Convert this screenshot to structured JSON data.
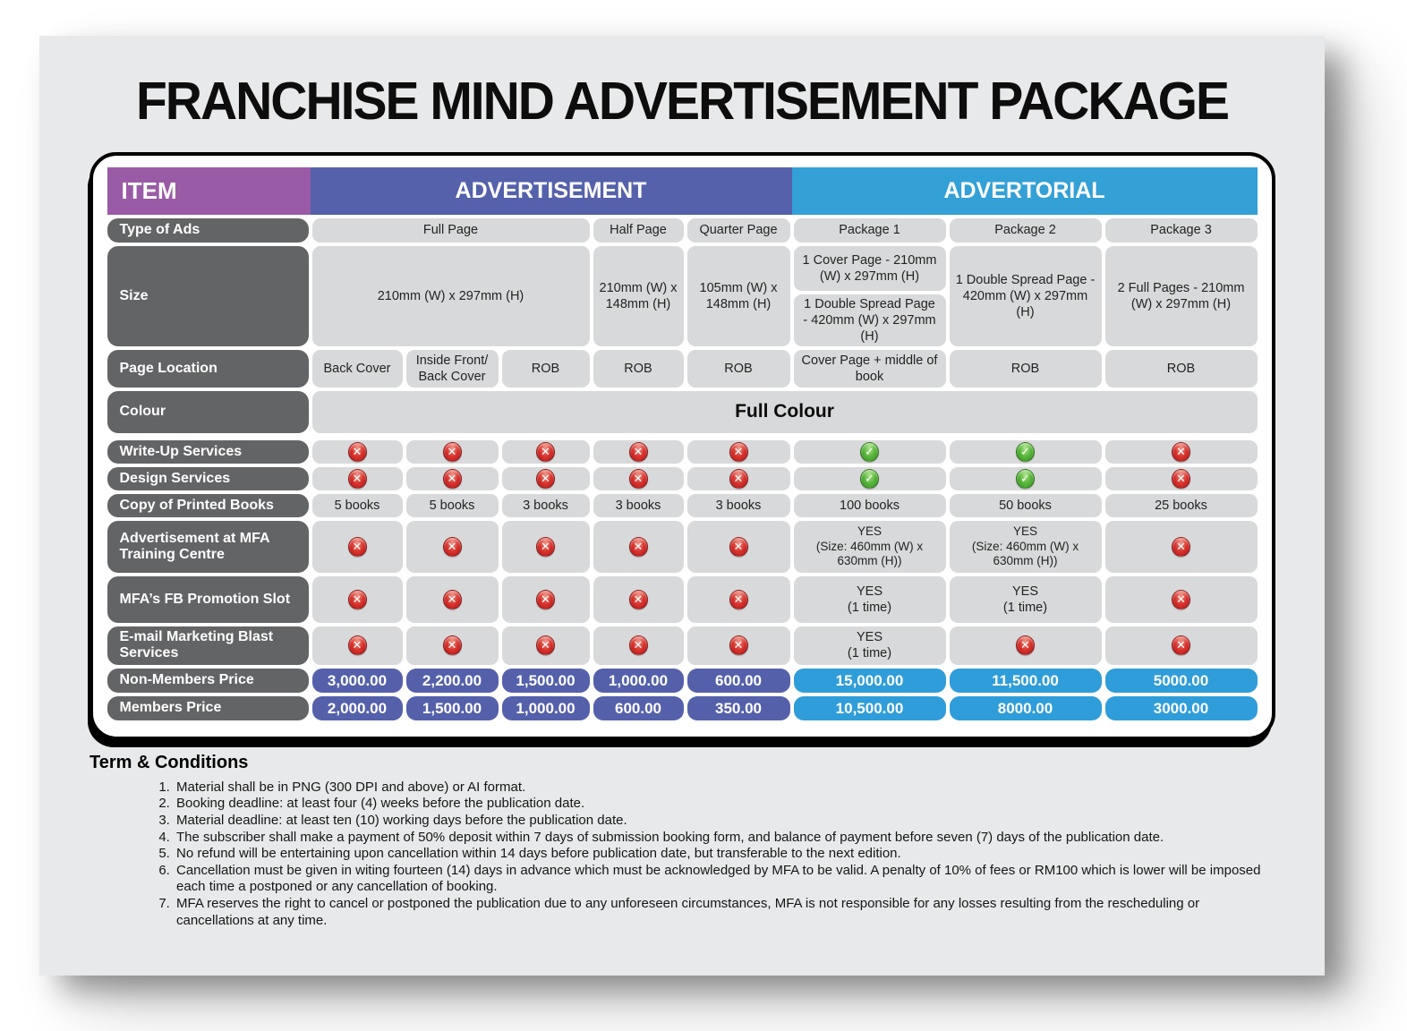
{
  "title": "FRANCHISE MIND ADVERTISEMENT PACKAGE",
  "header": {
    "item": "ITEM",
    "advertisement": "ADVERTISEMENT",
    "advertorial": "ADVERTORIAL"
  },
  "rows": {
    "type_of_ads": {
      "label": "Type of Ads",
      "full_page": "Full Page",
      "half_page": "Half Page",
      "quarter_page": "Quarter Page",
      "package1": "Package 1",
      "package2": "Package 2",
      "package3": "Package 3"
    },
    "size": {
      "label": "Size",
      "full_page": "210mm (W) x 297mm (H)",
      "half_page": "210mm (W) x 148mm (H)",
      "quarter_page": "105mm (W) x 148mm (H)",
      "package1_cover": "1 Cover Page - 210mm (W) x 297mm (H)",
      "package1_spread": "1 Double Spread Page - 420mm (W) x 297mm (H)",
      "package2": "1 Double Spread Page - 420mm (W) x 297mm (H)",
      "package3": "2 Full Pages - 210mm (W) x 297mm (H)"
    },
    "page_location": {
      "label": "Page Location",
      "cells": [
        "Back Cover",
        "Inside Front/ Back Cover",
        "ROB",
        "ROB",
        "ROB",
        "Cover Page + middle of book",
        "ROB",
        "ROB"
      ]
    },
    "colour": {
      "label": "Colour",
      "value": "Full Colour"
    },
    "write_up_services": {
      "label": "Write-Up Services",
      "values": [
        "no",
        "no",
        "no",
        "no",
        "no",
        "yes",
        "yes",
        "no"
      ]
    },
    "design_services": {
      "label": "Design Services",
      "values": [
        "no",
        "no",
        "no",
        "no",
        "no",
        "yes",
        "yes",
        "no"
      ]
    },
    "printed_books": {
      "label": "Copy of Printed Books",
      "values": [
        "5 books",
        "5 books",
        "3 books",
        "3 books",
        "3 books",
        "100 books",
        "50 books",
        "25 books"
      ]
    },
    "mfa_training": {
      "label": "Advertisement at MFA Training Centre",
      "values": [
        "no",
        "no",
        "no",
        "no",
        "no",
        "YES\n(Size: 460mm (W) x 630mm (H))",
        "YES\n(Size: 460mm (W) x 630mm (H))",
        "no"
      ]
    },
    "fb_promotion": {
      "label": "MFA’s FB Promotion Slot",
      "values": [
        "no",
        "no",
        "no",
        "no",
        "no",
        "YES\n(1 time)",
        "YES\n(1 time)",
        "no"
      ]
    },
    "email_blast": {
      "label": "E-mail Marketing Blast Services",
      "values": [
        "no",
        "no",
        "no",
        "no",
        "no",
        "YES\n(1 time)",
        "no",
        "no"
      ]
    },
    "non_members_price": {
      "label": "Non-Members Price",
      "values": [
        "3,000.00",
        "2,200.00",
        "1,500.00",
        "1,000.00",
        "600.00",
        "15,000.00",
        "11,500.00",
        "5000.00"
      ]
    },
    "members_price": {
      "label": "Members Price",
      "values": [
        "2,000.00",
        "1,500.00",
        "1,000.00",
        "600.00",
        "350.00",
        "10,500.00",
        "8000.00",
        "3000.00"
      ]
    }
  },
  "terms": {
    "heading": "Term & Conditions",
    "items": [
      "Material shall be in PNG (300 DPI and above) or AI format.",
      "Booking deadline: at least four (4) weeks before the publication date.",
      "Material deadline: at least ten (10) working days before the publication date.",
      "The subscriber shall make a payment of 50% deposit within 7 days of submission booking form, and balance of payment before seven (7) days of the publication date.",
      "No refund will be entertaining upon cancellation within 14 days before publication date, but transferable to the next edition.",
      "Cancellation must be given in witing fourteen (14) days in advance which must be acknowledged by MFA to be valid. A penalty of 10% of fees or RM100 which is lower will be imposed each time a postponed or any cancellation of booking.",
      "MFA reserves the right to cancel or postponed the publication due to any unforeseen circumstances, MFA is not responsible for any losses resulting from the rescheduling or cancellations at any time."
    ]
  },
  "colors": {
    "item_header": "#9a5ba6",
    "advertisement_header": "#5661ab",
    "advertorial_header": "#33a0d6",
    "row_label_bg": "#636466",
    "cell_bg": "#d8d9da",
    "price_ad_bg": "#5560ab",
    "price_advertorial_bg": "#2f9dd9",
    "yes_green": "#2f8a1f",
    "no_red": "#a8121a"
  }
}
